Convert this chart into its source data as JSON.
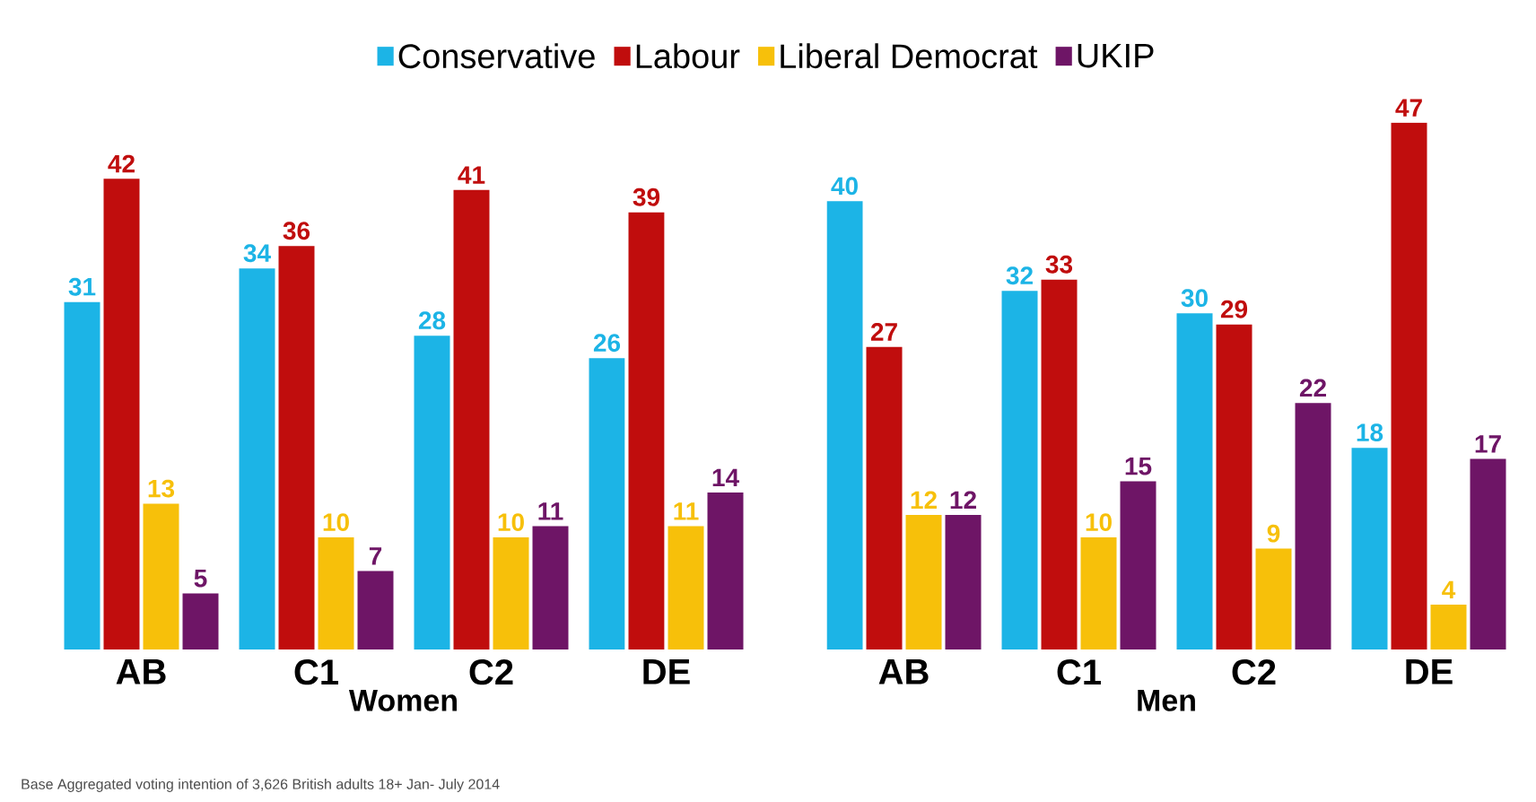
{
  "chart_data": [
    {
      "type": "bar",
      "xlabel": "Women",
      "categories": [
        "AB",
        "C1",
        "C2",
        "DE"
      ],
      "legend": "top",
      "data_labels": true,
      "series": [
        {
          "name": "Conservative",
          "color": "#1cb4e6",
          "values": [
            31,
            34,
            28,
            26
          ]
        },
        {
          "name": "Labour",
          "color": "#c00d0d",
          "values": [
            42,
            36,
            41,
            39
          ]
        },
        {
          "name": "Liberal Democrat",
          "color": "#f7c00a",
          "values": [
            13,
            10,
            10,
            11
          ]
        },
        {
          "name": "UKIP",
          "color": "#6e1566",
          "values": [
            5,
            7,
            11,
            14
          ]
        }
      ],
      "annotations": [
        "Base Aggregated voting intention of 3,626 British adults 18+ Jan- July 2014"
      ]
    },
    {
      "type": "bar",
      "xlabel": "Men",
      "categories": [
        "AB",
        "C1",
        "C2",
        "DE"
      ],
      "data_labels": true,
      "series": [
        {
          "color": "#1cb4e6",
          "values": [
            40,
            32,
            30,
            18
          ]
        },
        {
          "color": "#c00d0d",
          "values": [
            27,
            33,
            29,
            47
          ]
        },
        {
          "color": "#f7c00a",
          "values": [
            12,
            10,
            9,
            4
          ]
        },
        {
          "color": "#6e1566",
          "values": [
            12,
            15,
            22,
            17
          ]
        }
      ]
    }
  ]
}
